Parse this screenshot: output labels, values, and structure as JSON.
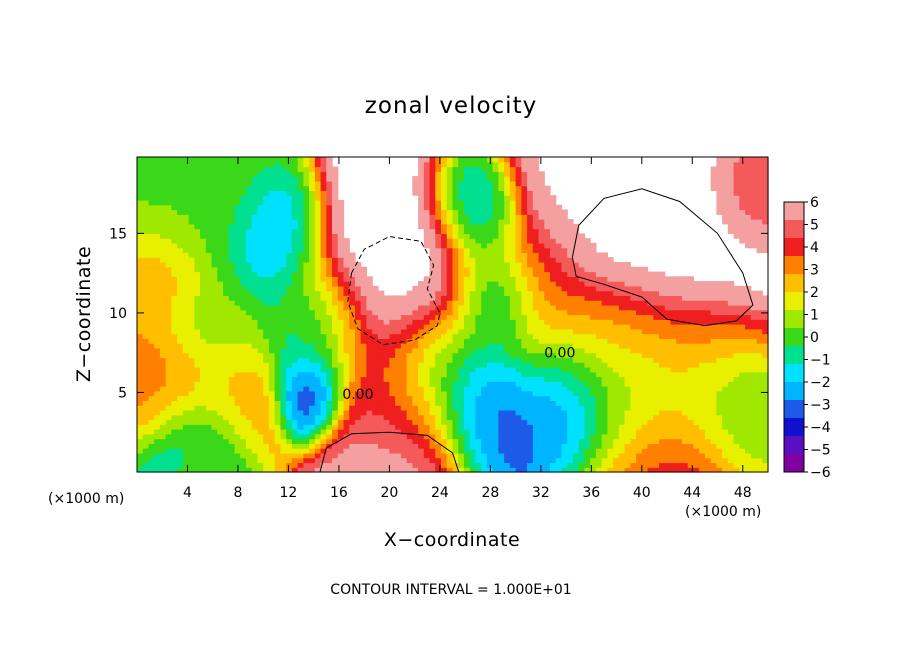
{
  "chart_data": {
    "type": "heatmap",
    "title": "zonal velocity",
    "xlabel": "X−coordinate",
    "ylabel": "Z−coordinate",
    "x_unit_left": "(×1000 m)",
    "x_unit_right": "(×1000 m)",
    "xlim": [
      0,
      50
    ],
    "ylim": [
      0,
      19.8
    ],
    "xticks": [
      4,
      8,
      12,
      16,
      20,
      24,
      28,
      32,
      36,
      40,
      44,
      48
    ],
    "xtick_labels": [
      "4",
      "8",
      "12",
      "16",
      "20",
      "24",
      "28",
      "32",
      "36",
      "40",
      "44",
      "48"
    ],
    "yticks": [
      5,
      10,
      15
    ],
    "ytick_labels": [
      "5",
      "10",
      "15"
    ],
    "colorbar": {
      "min": -6,
      "max": 6,
      "ticks": [
        6,
        5,
        4,
        3,
        2,
        1,
        0,
        -1,
        -2,
        -3,
        -4,
        -5,
        -6
      ],
      "tick_labels": [
        "6",
        "5",
        "4",
        "3",
        "2",
        "1",
        "0",
        "−1",
        "−2",
        "−3",
        "−4",
        "−5",
        "−6"
      ],
      "colors": [
        "#f5a0a0",
        "#f55a5a",
        "#ef1f1f",
        "#ff8000",
        "#ffbf00",
        "#e8f000",
        "#a0e800",
        "#3ad818",
        "#00e090",
        "#00e0ff",
        "#00b4ff",
        "#1e5ae8",
        "#1010d0",
        "#5a10c0",
        "#8000a0"
      ]
    },
    "contour_labels": [
      {
        "text": "0.00",
        "x": 17.5,
        "y": 4.6
      },
      {
        "text": "0.00",
        "x": 33.5,
        "y": 7.2
      }
    ],
    "features": [
      {
        "x": 5.5,
        "y": 17.5,
        "v": 0.3,
        "r": 4.5
      },
      {
        "x": 2.0,
        "y": 12.0,
        "v": 2.5,
        "r": 2.5
      },
      {
        "x": 11.0,
        "y": 15.0,
        "v": -2.5,
        "r": 3.0
      },
      {
        "x": 14.5,
        "y": 9.0,
        "v": -1.5,
        "r": 3.5
      },
      {
        "x": 6.0,
        "y": 8.5,
        "v": 0.5,
        "r": 3.0
      },
      {
        "x": 3.0,
        "y": 5.5,
        "v": 3.5,
        "r": 3.0
      },
      {
        "x": 7.5,
        "y": 4.5,
        "v": 3.0,
        "r": 3.0
      },
      {
        "x": 20.5,
        "y": 4.2,
        "v": 3.5,
        "r": 4.0
      },
      {
        "x": 14.0,
        "y": 5.0,
        "v": -4.5,
        "r": 2.0
      },
      {
        "x": 5.0,
        "y": 2.0,
        "v": -2.0,
        "r": 3.0
      },
      {
        "x": 5.0,
        "y": 0.3,
        "v": 1.5,
        "r": 1.5
      },
      {
        "x": 24.0,
        "y": 6.0,
        "v": -3.0,
        "r": 4.0
      },
      {
        "x": 27.5,
        "y": 3.5,
        "v": -3.5,
        "r": 3.0
      },
      {
        "x": 27.0,
        "y": 16.5,
        "v": -3.5,
        "r": 3.0
      },
      {
        "x": 28.5,
        "y": 11.0,
        "v": -2.5,
        "r": 3.0
      },
      {
        "x": 32.0,
        "y": 12.5,
        "v": 3.0,
        "r": 3.5
      },
      {
        "x": 35.0,
        "y": 8.5,
        "v": 2.0,
        "r": 3.5
      },
      {
        "x": 34.0,
        "y": 5.0,
        "v": -3.5,
        "r": 3.0
      },
      {
        "x": 40.0,
        "y": 5.2,
        "v": -3.5,
        "r": 5.0
      },
      {
        "x": 46.0,
        "y": 5.0,
        "v": -2.0,
        "r": 4.0
      },
      {
        "x": 44.5,
        "y": 7.5,
        "v": 3.5,
        "r": 4.0
      },
      {
        "x": 39.0,
        "y": 8.0,
        "v": 2.5,
        "r": 4.0
      },
      {
        "x": 48.5,
        "y": 17.5,
        "v": 3.5,
        "r": 3.0
      },
      {
        "x": 49.5,
        "y": 3.0,
        "v": 1.5,
        "r": 2.0
      },
      {
        "x": 21.0,
        "y": 12.0,
        "v": 8.0,
        "r": 6.0
      },
      {
        "x": 42.0,
        "y": 13.5,
        "v": 9.0,
        "r": 7.0
      },
      {
        "x": 35.0,
        "y": 18.0,
        "v": 7.0,
        "r": 5.0
      },
      {
        "x": 21.0,
        "y": 1.5,
        "v": 7.0,
        "r": 4.0
      },
      {
        "x": 42.0,
        "y": 2.0,
        "v": 7.0,
        "r": 4.5
      }
    ],
    "dashed_loops": [
      [
        [
          17.0,
          12.5
        ],
        [
          18.0,
          14.0
        ],
        [
          20.0,
          14.8
        ],
        [
          22.5,
          14.5
        ],
        [
          23.5,
          13.0
        ],
        [
          23.0,
          11.5
        ],
        [
          24.0,
          10.0
        ],
        [
          23.8,
          9.2
        ],
        [
          22.0,
          8.3
        ],
        [
          19.5,
          8.0
        ],
        [
          17.5,
          9.0
        ],
        [
          16.7,
          10.7
        ],
        [
          17.0,
          12.5
        ]
      ]
    ],
    "solid_loops": [
      [
        [
          34.5,
          13.5
        ],
        [
          35.0,
          15.5
        ],
        [
          37.0,
          17.2
        ],
        [
          40.0,
          17.8
        ],
        [
          43.0,
          17.0
        ],
        [
          46.0,
          15.0
        ],
        [
          48.0,
          12.5
        ],
        [
          48.8,
          10.5
        ],
        [
          47.5,
          9.5
        ],
        [
          45.0,
          9.2
        ],
        [
          42.0,
          9.6
        ],
        [
          40.0,
          11.0
        ],
        [
          37.0,
          11.8
        ],
        [
          34.8,
          12.3
        ],
        [
          34.5,
          13.5
        ]
      ],
      [
        [
          14.5,
          0.0
        ],
        [
          15.0,
          1.5
        ],
        [
          17.0,
          2.4
        ],
        [
          20.0,
          2.5
        ],
        [
          23.0,
          2.3
        ],
        [
          25.0,
          1.2
        ],
        [
          25.5,
          0.0
        ]
      ]
    ]
  },
  "footer": {
    "contour_interval": "CONTOUR INTERVAL = 1.000E+01"
  }
}
